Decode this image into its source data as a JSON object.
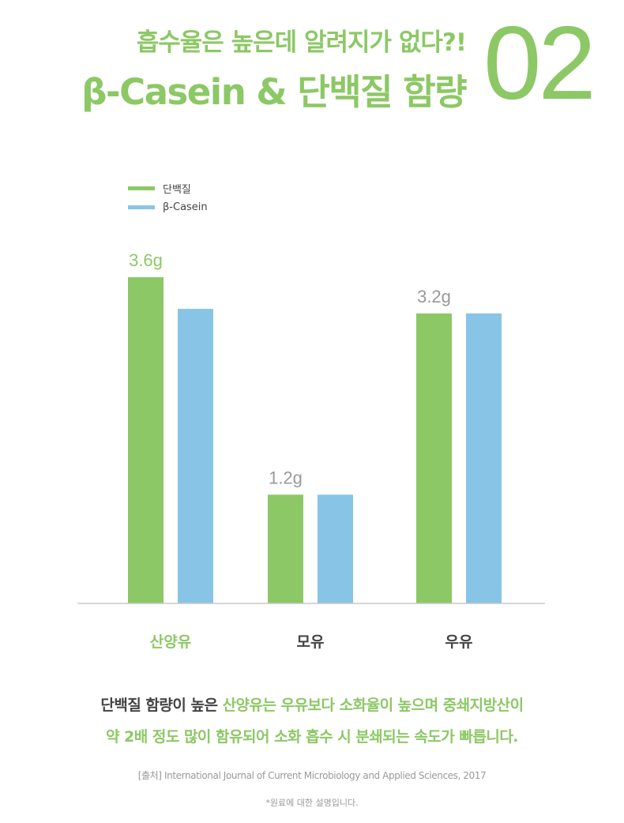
{
  "header": {
    "subtitle": "흡수율은 높은데 알려지가 없다?!",
    "title": "β-Casein & 단백질 함량",
    "number": "02"
  },
  "colors": {
    "accent": "#8cc865",
    "protein": "#8cc865",
    "beta_casein": "#88c4e6",
    "axis": "#c8c8c8",
    "text": "#444444",
    "muted": "#999999"
  },
  "chart_data": {
    "type": "bar",
    "categories": [
      "산양유",
      "모유",
      "우유"
    ],
    "series": [
      {
        "name": "단백질",
        "values": [
          3.6,
          1.2,
          3.2
        ],
        "color": "#8cc865"
      },
      {
        "name": "β-Casein",
        "values": [
          3.25,
          1.2,
          3.2
        ],
        "color": "#88c4e6"
      }
    ],
    "data_labels": [
      "3.6g",
      "1.2g",
      "3.2g"
    ],
    "ylim": [
      0,
      4.0
    ],
    "grid": false,
    "legend_position": "top-left",
    "highlight_category": "산양유"
  },
  "note": {
    "line1_plain": "단백질 함량이 높은 ",
    "line1_highlight": "산양유는 우유보다 소화율이 높으며 중쇄지방산이",
    "line2": "약 2배 정도 많이 함유되어 소화 흡수 시 분쇄되는 속도가 빠릅니다."
  },
  "source": "[출처] International Journal of Current Microbiology and Applied Sciences, 2017",
  "disclaimer": "*원료에 대한 설명입니다."
}
